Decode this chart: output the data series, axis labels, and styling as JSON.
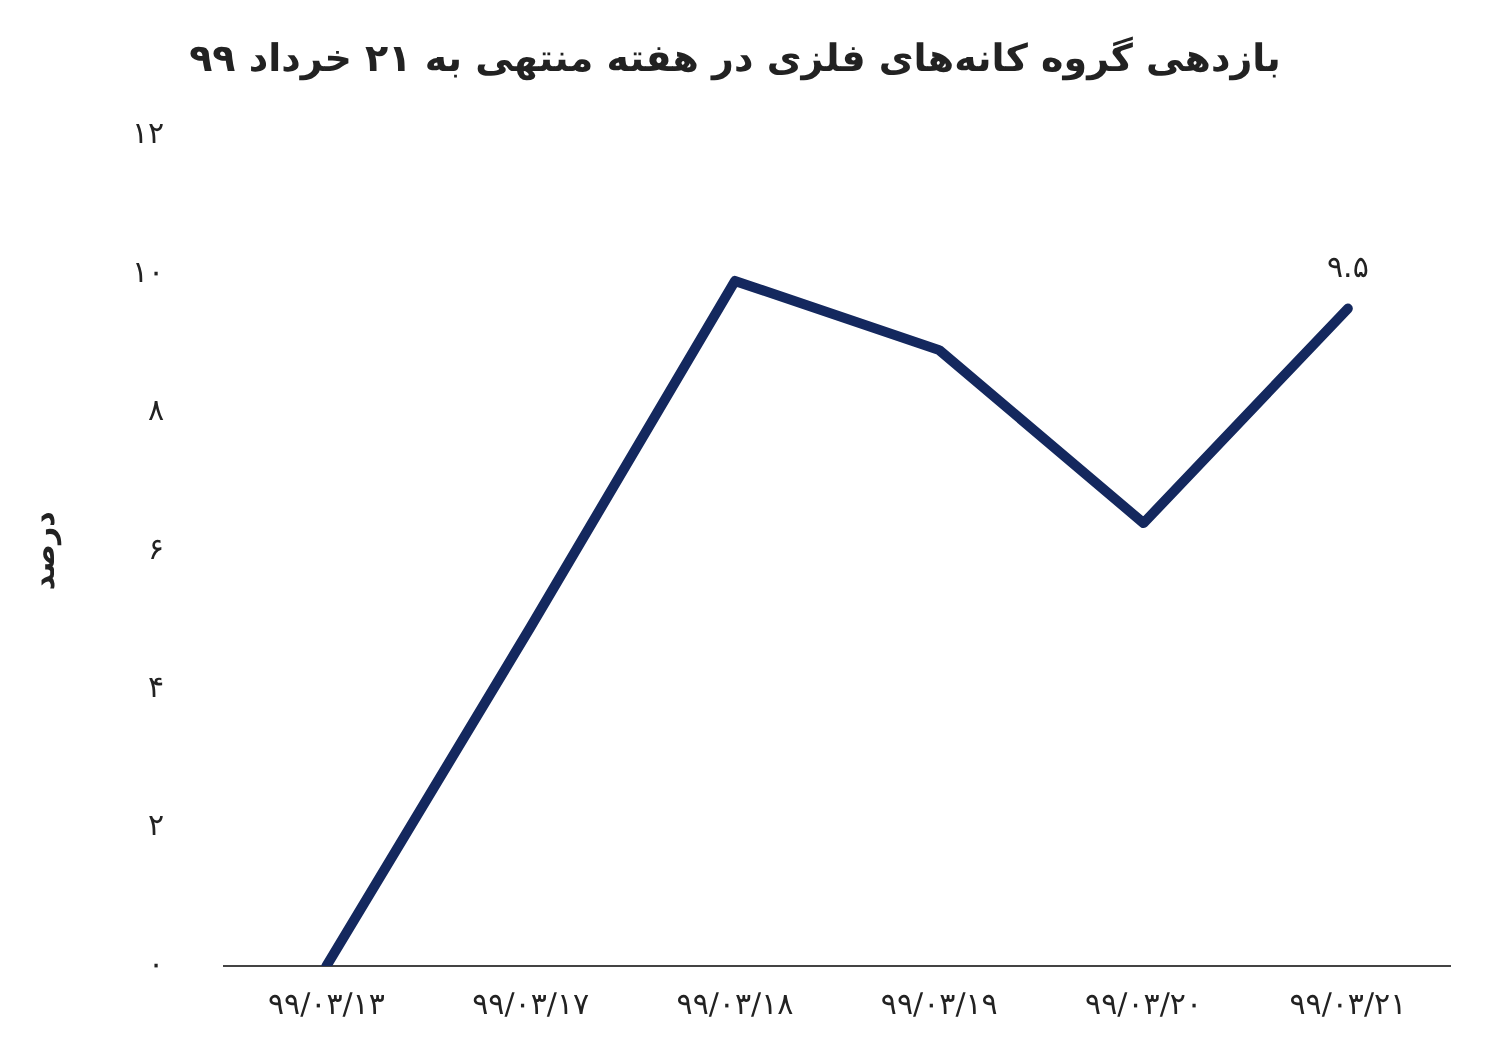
{
  "chart_data": {
    "type": "line",
    "title": "بازدهی گروه کانه‌های فلزی در هفته منتهی به ۲۱ خرداد ۹۹",
    "ylabel": "درصد",
    "categories": [
      "۹۹/۰۳/۱۳",
      "۹۹/۰۳/۱۷",
      "۹۹/۰۳/۱۸",
      "۹۹/۰۳/۱۹",
      "۹۹/۰۳/۲۰",
      "۹۹/۰۳/۲۱"
    ],
    "series": [
      {
        "color": "#14285e",
        "values": [
          0,
          4.9,
          9.9,
          8.9,
          6.4,
          9.5
        ],
        "value_labels": [
          null,
          null,
          null,
          null,
          null,
          "۹.۵"
        ]
      }
    ],
    "ylim": [
      0,
      12
    ],
    "yticks": [
      {
        "value": 0,
        "label": "۰"
      },
      {
        "value": 2,
        "label": "۲"
      },
      {
        "value": 4,
        "label": "۴"
      },
      {
        "value": 6,
        "label": "۶"
      },
      {
        "value": 8,
        "label": "۸"
      },
      {
        "value": 10,
        "label": "۱۰"
      },
      {
        "value": 12,
        "label": "۱۲"
      }
    ],
    "grid": false,
    "legend": false,
    "marker": "none",
    "line_style": "solid"
  }
}
